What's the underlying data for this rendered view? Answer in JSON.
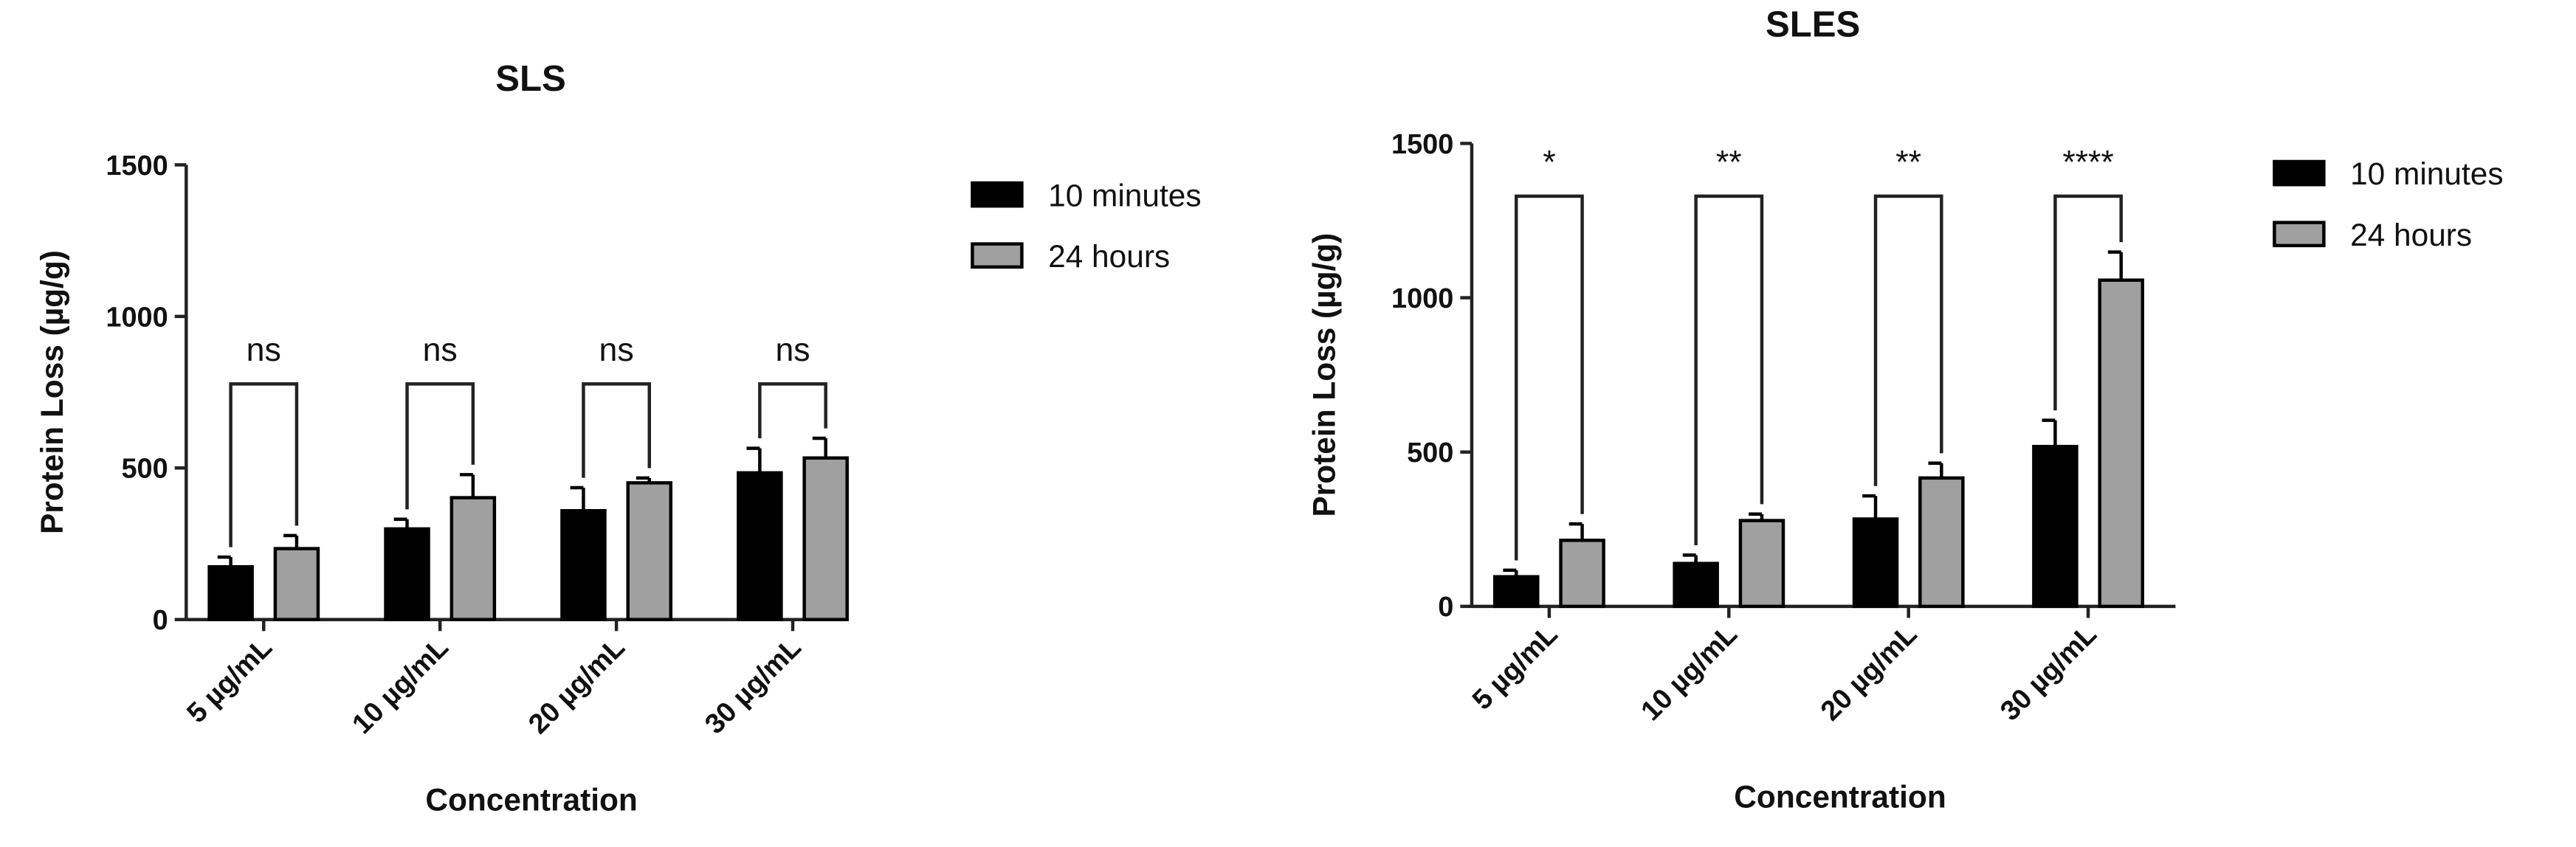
{
  "chart_data": [
    {
      "type": "bar",
      "title": "SLS",
      "x_label": "Concentration",
      "y_label": "Protein Loss (µg/g)",
      "categories": [
        "5 µg/mL",
        "10 µg/mL",
        "20 µg/mL",
        "30 µg/mL"
      ],
      "series": [
        {
          "name": "10 minutes",
          "color": "#000000",
          "values": [
            174,
            299,
            359,
            484
          ],
          "errors": [
            32,
            32,
            76,
            81
          ]
        },
        {
          "name": "24 hours",
          "color": "#a0a0a0",
          "values": [
            234,
            402,
            451,
            533
          ],
          "errors": [
            43,
            76,
            16,
            65
          ]
        }
      ],
      "annotations": [
        "ns",
        "ns",
        "ns",
        "ns"
      ],
      "ylim": [
        0,
        1500
      ],
      "yticks": [
        0,
        500,
        1000,
        1500
      ]
    },
    {
      "type": "bar",
      "title": "SLES",
      "x_label": "Concentration",
      "y_label": "Protein Loss (µg/g)",
      "categories": [
        "5 µg/mL",
        "10 µg/mL",
        "20 µg/mL",
        "30 µg/mL"
      ],
      "series": [
        {
          "name": "10 minutes",
          "color": "#000000",
          "values": [
            96,
            139,
            283,
            518
          ],
          "errors": [
            21,
            27,
            75,
            85
          ]
        },
        {
          "name": "24 hours",
          "color": "#a0a0a0",
          "values": [
            214,
            278,
            416,
            1057
          ],
          "errors": [
            53,
            21,
            48,
            91
          ]
        }
      ],
      "annotations": [
        "*",
        "**",
        "**",
        "****"
      ],
      "ylim": [
        0,
        1500
      ],
      "yticks": [
        0,
        500,
        1000,
        1500
      ]
    }
  ]
}
